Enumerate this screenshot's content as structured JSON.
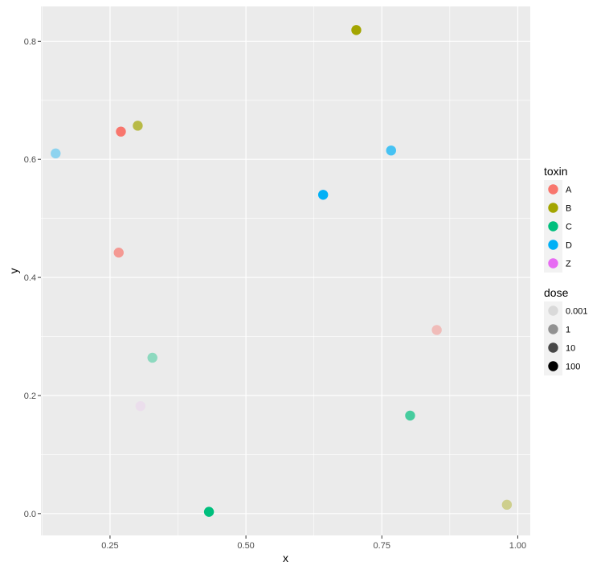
{
  "chart_data": {
    "type": "scatter",
    "xlabel": "x",
    "ylabel": "y",
    "xlim": [
      0.123,
      1.023
    ],
    "ylim": [
      -0.037,
      0.859
    ],
    "x_ticks": [
      0.25,
      0.5,
      0.75,
      1.0
    ],
    "x_tick_labels": [
      "0.25",
      "0.50",
      "0.75",
      "1.00"
    ],
    "y_ticks": [
      0.0,
      0.2,
      0.4,
      0.6,
      0.8
    ],
    "y_tick_labels": [
      "0.0",
      "0.2",
      "0.4",
      "0.6",
      "0.8"
    ],
    "grid": true,
    "legend_position": "right",
    "color_legend": {
      "title": "toxin",
      "entries": [
        {
          "label": "A",
          "color": "#F8766D"
        },
        {
          "label": "B",
          "color": "#A3A500"
        },
        {
          "label": "C",
          "color": "#00BF7D"
        },
        {
          "label": "D",
          "color": "#00B0F6"
        },
        {
          "label": "Z",
          "color": "#E76BF3"
        }
      ]
    },
    "alpha_legend": {
      "title": "dose",
      "entries": [
        {
          "label": "0.001",
          "alpha": 0.1
        },
        {
          "label": "1",
          "alpha": 0.4
        },
        {
          "label": "10",
          "alpha": 0.7
        },
        {
          "label": "100",
          "alpha": 1.0
        }
      ]
    },
    "points": [
      {
        "x": 0.703,
        "y": 0.819,
        "toxin": "B",
        "dose": "100"
      },
      {
        "x": 0.301,
        "y": 0.657,
        "toxin": "B",
        "dose": "10"
      },
      {
        "x": 0.27,
        "y": 0.647,
        "toxin": "A",
        "dose": "100"
      },
      {
        "x": 0.15,
        "y": 0.61,
        "toxin": "D",
        "dose": "1"
      },
      {
        "x": 0.767,
        "y": 0.615,
        "toxin": "D",
        "dose": "10"
      },
      {
        "x": 0.642,
        "y": 0.54,
        "toxin": "D",
        "dose": "100"
      },
      {
        "x": 0.266,
        "y": 0.442,
        "toxin": "A",
        "dose": "10"
      },
      {
        "x": 0.851,
        "y": 0.311,
        "toxin": "A",
        "dose": "1"
      },
      {
        "x": 0.328,
        "y": 0.264,
        "toxin": "C",
        "dose": "1"
      },
      {
        "x": 0.306,
        "y": 0.182,
        "toxin": "Z",
        "dose": "0.001"
      },
      {
        "x": 0.802,
        "y": 0.166,
        "toxin": "C",
        "dose": "10"
      },
      {
        "x": 0.98,
        "y": 0.015,
        "toxin": "B",
        "dose": "1"
      },
      {
        "x": 0.432,
        "y": 0.003,
        "toxin": "C",
        "dose": "100"
      }
    ]
  }
}
